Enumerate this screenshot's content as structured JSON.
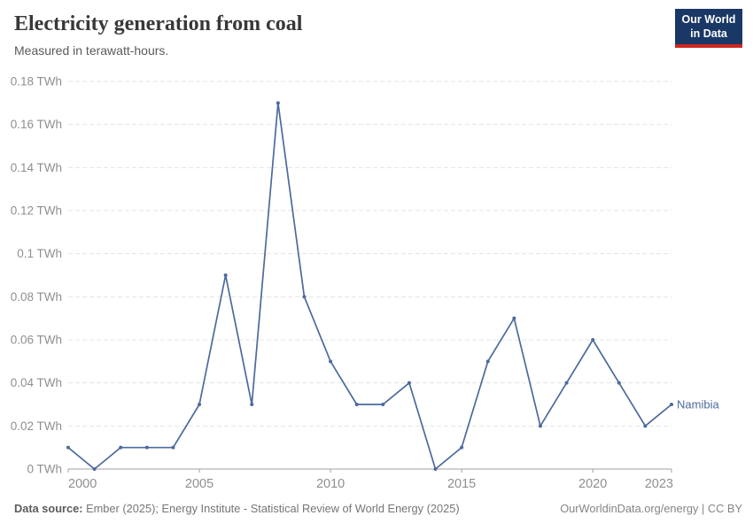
{
  "header": {
    "title": "Electricity generation from coal",
    "subtitle": "Measured in terawatt-hours.",
    "logo": {
      "line1": "Our World",
      "line2": "in Data"
    }
  },
  "colors": {
    "series_line": "#4C6A9C",
    "logo_background": "#1A3866",
    "logo_underline": "#CE2620",
    "grid": "#e4e4e4",
    "axis": "#a1a1a1",
    "tick_label": "#8f8f8f"
  },
  "chart_data": {
    "type": "line",
    "title": "Electricity generation from coal",
    "subtitle": "Measured in terawatt-hours.",
    "xlabel": "",
    "ylabel": "",
    "xlim": [
      2000,
      2023
    ],
    "ylim": [
      0,
      0.18
    ],
    "grid": "horizontal-dashed",
    "legend_position": "end-of-line-label",
    "x": [
      2000,
      2001,
      2002,
      2003,
      2004,
      2005,
      2006,
      2007,
      2008,
      2009,
      2010,
      2011,
      2012,
      2013,
      2014,
      2015,
      2016,
      2017,
      2018,
      2019,
      2020,
      2021,
      2022,
      2023
    ],
    "series": [
      {
        "name": "Namibia",
        "values": [
          0.01,
          0,
          0.01,
          0.01,
          0.01,
          0.03,
          0.09,
          0.03,
          0.17,
          0.08,
          0.05,
          0.03,
          0.03,
          0.04,
          0,
          0.01,
          0.05,
          0.07,
          0.02,
          0.04,
          0.06,
          0.04,
          0.02,
          0.03
        ]
      }
    ],
    "x_tick_labels": [
      "2000",
      "2005",
      "2010",
      "2015",
      "2020",
      "2023"
    ],
    "y_ticks": [
      {
        "value": 0,
        "label": "0 TWh"
      },
      {
        "value": 0.02,
        "label": "0.02 TWh"
      },
      {
        "value": 0.04,
        "label": "0.04 TWh"
      },
      {
        "value": 0.06,
        "label": "0.06 TWh"
      },
      {
        "value": 0.08,
        "label": "0.08 TWh"
      },
      {
        "value": 0.1,
        "label": "0.1 TWh"
      },
      {
        "value": 0.12,
        "label": "0.12 TWh"
      },
      {
        "value": 0.14,
        "label": "0.14 TWh"
      },
      {
        "value": 0.16,
        "label": "0.16 TWh"
      },
      {
        "value": 0.18,
        "label": "0.18 TWh"
      }
    ]
  },
  "footer": {
    "source_label": "Data source:",
    "source_text": "Ember (2025); Energy Institute - Statistical Review of World Energy (2025)",
    "credit": "OurWorldinData.org/energy | CC BY"
  }
}
